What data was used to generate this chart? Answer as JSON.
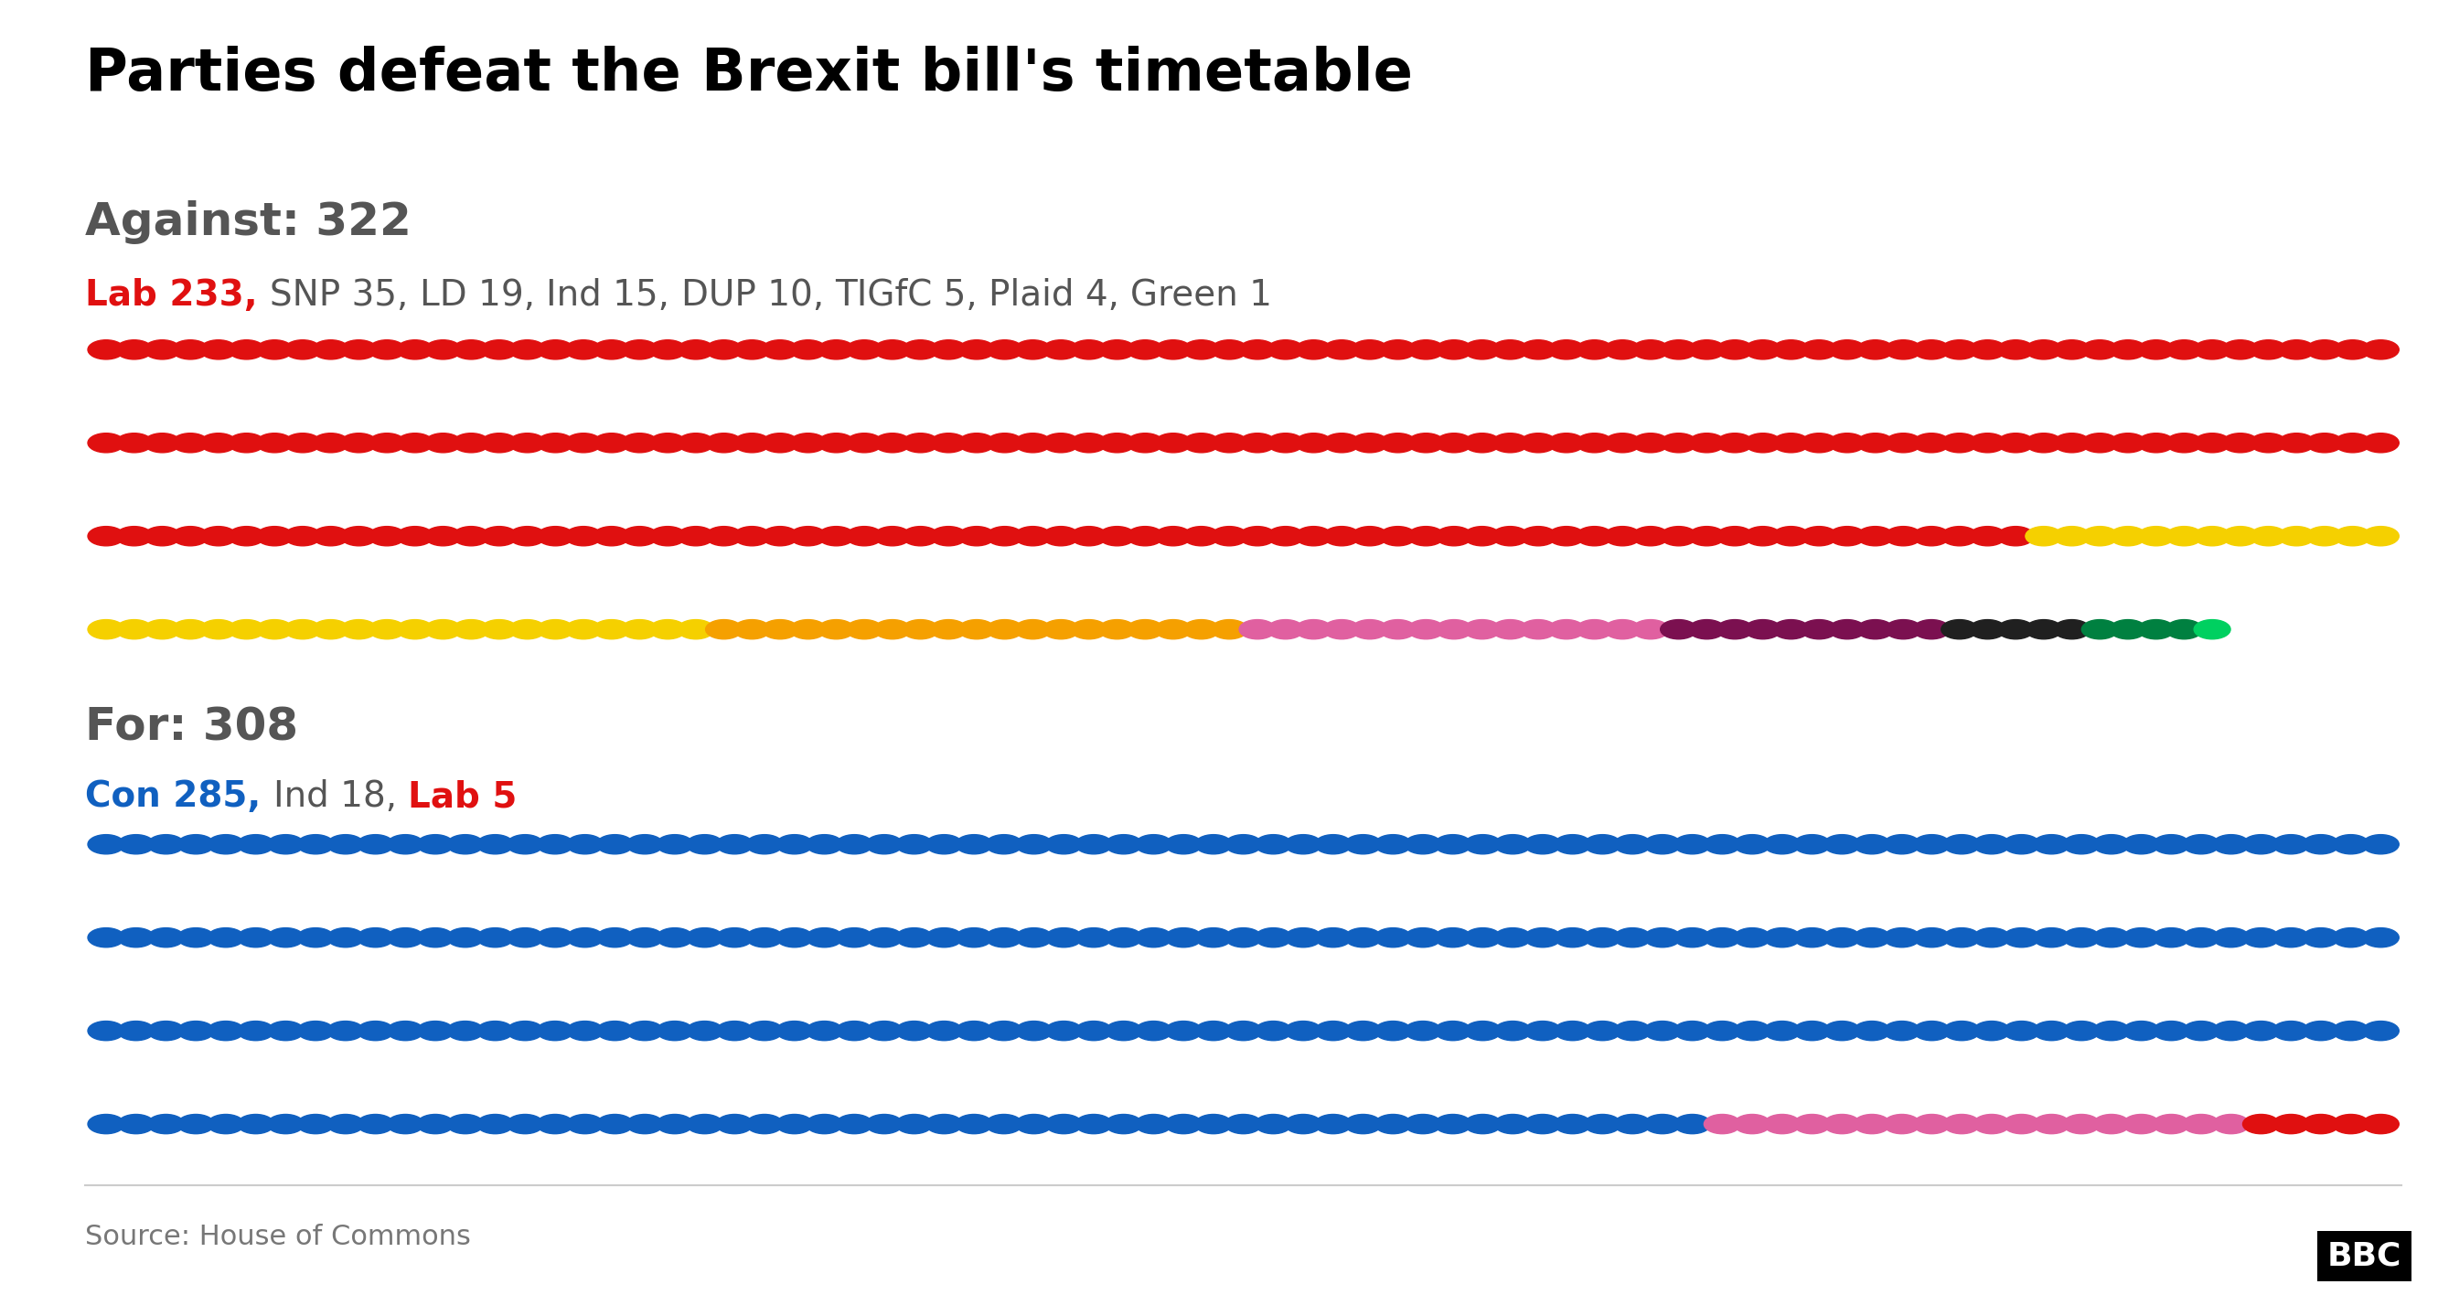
{
  "title": "Parties defeat the Brexit bill's timetable",
  "against_total": 322,
  "for_total": 308,
  "against_parties": [
    {
      "name": "Lab",
      "count": 233,
      "color": "#e01010"
    },
    {
      "name": "SNP",
      "count": 35,
      "color": "#f5d000"
    },
    {
      "name": "LD",
      "count": 19,
      "color": "#f5a000"
    },
    {
      "name": "Ind",
      "count": 15,
      "color": "#e060a0"
    },
    {
      "name": "DUP",
      "count": 10,
      "color": "#7b1050"
    },
    {
      "name": "TIGfC",
      "count": 5,
      "color": "#202020"
    },
    {
      "name": "Plaid",
      "count": 4,
      "color": "#008040"
    },
    {
      "name": "Green",
      "count": 1,
      "color": "#00d060"
    }
  ],
  "for_parties": [
    {
      "name": "Con",
      "count": 285,
      "color": "#1060c0"
    },
    {
      "name": "Ind",
      "count": 18,
      "color": "#e060a0"
    },
    {
      "name": "Lab",
      "count": 5,
      "color": "#e01010"
    }
  ],
  "against_label_color": "#555555",
  "for_label_color": "#555555",
  "title_color": "#000000",
  "source_text": "Source: House of Commons",
  "background_color": "#ffffff",
  "dots_per_row_against": 82,
  "dots_per_row_for": 77,
  "against_rows": 4,
  "for_rows": 4
}
